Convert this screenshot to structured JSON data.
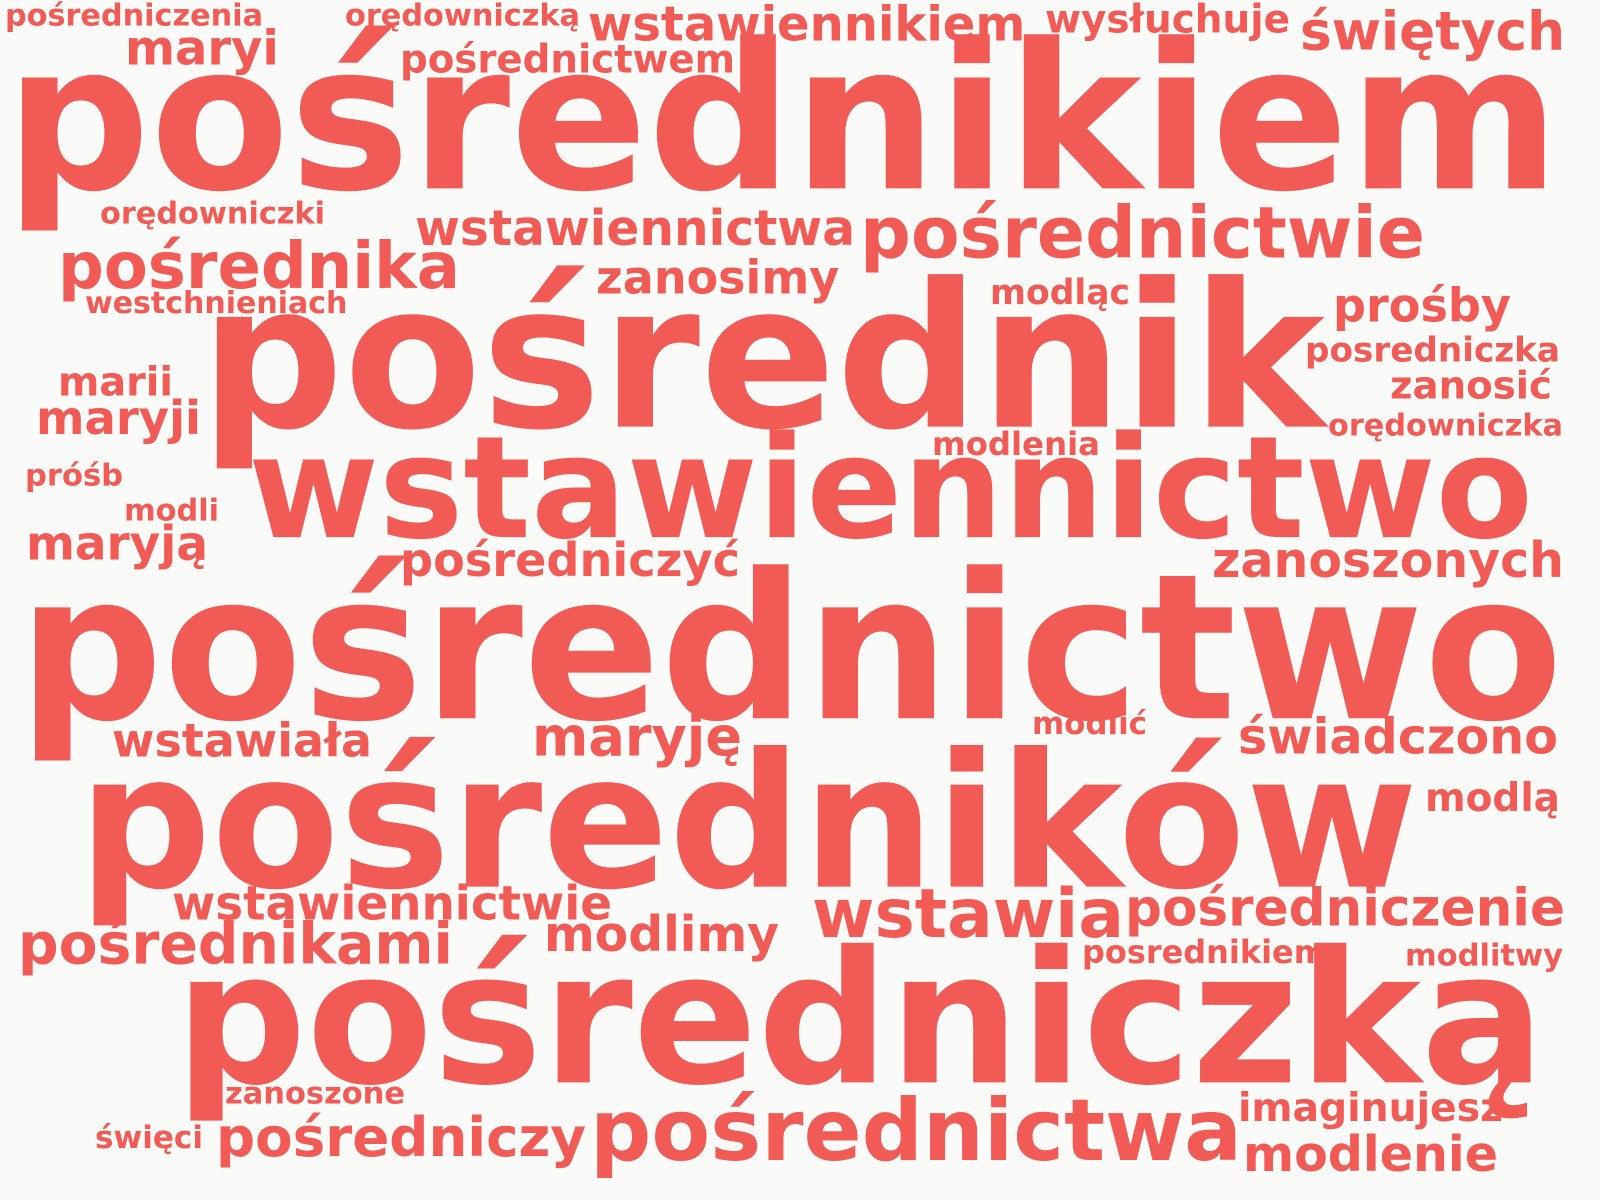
{
  "colors": {
    "word": "#f25a55",
    "background": "#fafaf8"
  },
  "words": [
    "pośredniczenia",
    "orędowniczką",
    "wstawiennikiem",
    "wysłuchuje",
    "świętych",
    "maryi",
    "pośrednictwem",
    "pośrednikiem",
    "orędowniczki",
    "wstawiennictwa",
    "pośrednictwie",
    "pośrednika",
    "zanosimy",
    "westchnieniach",
    "modląc",
    "prośby",
    "posredniczka",
    "pośrednik",
    "marii",
    "zanosić",
    "maryji",
    "orędowniczka",
    "modlenia",
    "wstawiennictwo",
    "próśb",
    "modli",
    "maryją",
    "pośredniczyć",
    "zanoszonych",
    "pośrednictwo",
    "wstawiała",
    "maryję",
    "modlić",
    "świadczono",
    "modlą",
    "pośredników",
    "wstawiennictwie",
    "wstawia",
    "pośredniczenie",
    "pośrednikami",
    "modlimy",
    "posrednikiem",
    "modlitwy",
    "pośredniczką",
    "zanoszone",
    "imaginujesz",
    "święci",
    "pośredniczy",
    "pośrednictwa",
    "modlenie"
  ]
}
